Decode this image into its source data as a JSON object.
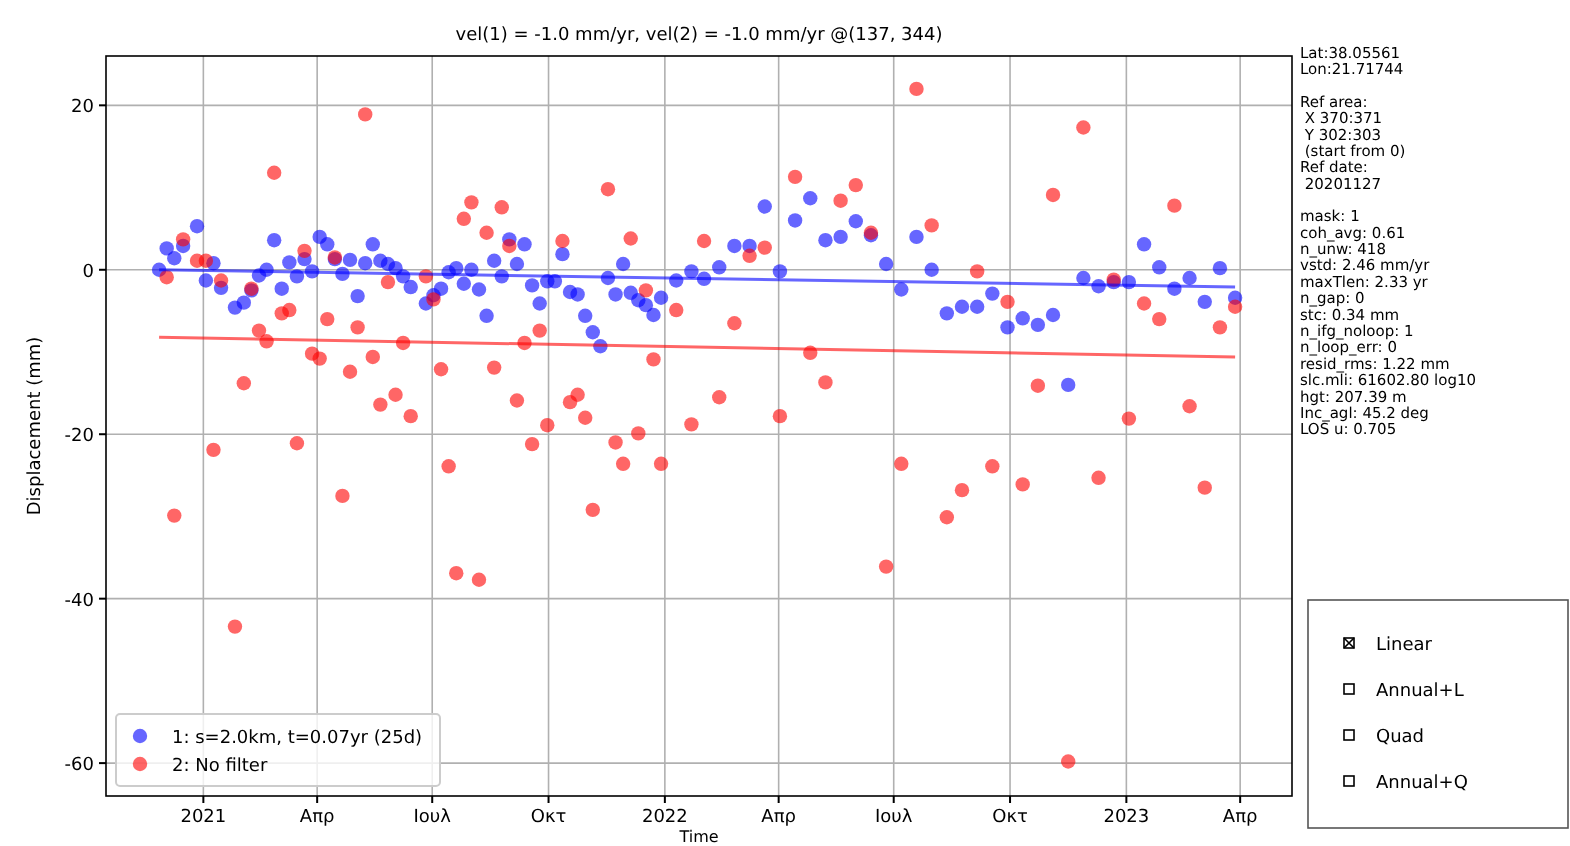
{
  "chart_data": {
    "type": "scatter",
    "title": "vel(1) = -1.0 mm/yr, vel(2) = -1.0 mm/yr @(137, 344)",
    "xlabel": "Time",
    "ylabel": "Displacement (mm)",
    "xlim": [
      "2020-10-16",
      "2023-05-12"
    ],
    "ylim": [
      -64,
      26
    ],
    "yticks": [
      -60,
      -40,
      -20,
      0,
      20
    ],
    "xticks": [
      {
        "value": "2021-01-01",
        "label": "2021"
      },
      {
        "value": "2021-04-01",
        "label": "Απρ"
      },
      {
        "value": "2021-07-01",
        "label": "Ιουλ"
      },
      {
        "value": "2021-10-01",
        "label": "Οκτ"
      },
      {
        "value": "2022-01-01",
        "label": "2022"
      },
      {
        "value": "2022-04-01",
        "label": "Απρ"
      },
      {
        "value": "2022-07-01",
        "label": "Ιουλ"
      },
      {
        "value": "2022-10-01",
        "label": "Οκτ"
      },
      {
        "value": "2023-01-01",
        "label": "2023"
      },
      {
        "value": "2023-04-01",
        "label": "Απρ"
      }
    ],
    "grid": true,
    "legend": "bottom left",
    "marker": "circle",
    "series": [
      {
        "name": "1: s=2.0km, t=0.07yr (25d)",
        "color": "#0000ff",
        "x": [
          "2020-11-27",
          "2020-12-03",
          "2020-12-09",
          "2020-12-16",
          "2020-12-27",
          "2021-01-03",
          "2021-01-09",
          "2021-01-15",
          "2021-01-26",
          "2021-02-02",
          "2021-02-08",
          "2021-02-14",
          "2021-02-20",
          "2021-02-26",
          "2021-03-04",
          "2021-03-10",
          "2021-03-16",
          "2021-03-22",
          "2021-03-28",
          "2021-04-03",
          "2021-04-09",
          "2021-04-15",
          "2021-04-21",
          "2021-04-27",
          "2021-05-03",
          "2021-05-09",
          "2021-05-15",
          "2021-05-21",
          "2021-05-27",
          "2021-06-02",
          "2021-06-08",
          "2021-06-14",
          "2021-06-26",
          "2021-07-02",
          "2021-07-08",
          "2021-07-14",
          "2021-07-20",
          "2021-07-26",
          "2021-08-01",
          "2021-08-07",
          "2021-08-13",
          "2021-08-19",
          "2021-08-25",
          "2021-08-31",
          "2021-09-06",
          "2021-09-12",
          "2021-09-18",
          "2021-09-24",
          "2021-09-30",
          "2021-10-06",
          "2021-10-12",
          "2021-10-18",
          "2021-10-24",
          "2021-10-30",
          "2021-11-05",
          "2021-11-11",
          "2021-11-17",
          "2021-11-23",
          "2021-11-29",
          "2021-12-05",
          "2021-12-11",
          "2021-12-17",
          "2021-12-23",
          "2021-12-29",
          "2022-01-10",
          "2022-01-22",
          "2022-02-01",
          "2022-02-13",
          "2022-02-25",
          "2022-03-09",
          "2022-03-21",
          "2022-04-02",
          "2022-04-14",
          "2022-04-26",
          "2022-05-08",
          "2022-05-20",
          "2022-06-01",
          "2022-06-13",
          "2022-06-25",
          "2022-07-07",
          "2022-07-19",
          "2022-07-31",
          "2022-08-12",
          "2022-08-24",
          "2022-09-05",
          "2022-09-17",
          "2022-09-29",
          "2022-10-11",
          "2022-10-23",
          "2022-11-04",
          "2022-11-16",
          "2022-11-28",
          "2022-12-10",
          "2022-12-22",
          "2023-01-03",
          "2023-01-15",
          "2023-01-27",
          "2023-02-08",
          "2023-02-20",
          "2023-03-04",
          "2023-03-16",
          "2023-03-28"
        ],
        "values": [
          0,
          2.6,
          1.4,
          2.9,
          5.3,
          -1.3,
          0.8,
          -2.2,
          -4.6,
          -4.0,
          -2.5,
          -0.7,
          0,
          3.6,
          -2.3,
          0.9,
          -0.8,
          1.3,
          -0.2,
          4.0,
          3.1,
          1.3,
          -0.5,
          1.2,
          -3.2,
          0.8,
          3.1,
          1.1,
          0.7,
          0.2,
          -0.8,
          -2.1,
          -4.1,
          -3.1,
          -2.3,
          -0.3,
          0.2,
          -1.7,
          0,
          -2.4,
          -5.6,
          1.1,
          -0.8,
          3.7,
          0.7,
          3.1,
          -1.9,
          -4.1,
          -1.4,
          -1.4,
          1.9,
          -2.7,
          -3.0,
          -5.6,
          -7.6,
          -9.3,
          -1.0,
          -3.0,
          0.7,
          -2.8,
          -3.7,
          -4.3,
          -5.5,
          -3.4,
          -1.3,
          -0.2,
          -1.1,
          0.3,
          2.9,
          2.9,
          7.7,
          -0.2,
          6.0,
          8.7,
          3.6,
          4.0,
          5.9,
          4.2,
          0.7,
          -2.4,
          4.0,
          0,
          -5.3,
          -4.5,
          -4.5,
          -2.9,
          -7.0,
          -5.9,
          -6.7,
          -5.5,
          -14.0,
          -1.0,
          -2.0,
          -1.5,
          -1.5,
          3.1,
          0.3,
          -2.3,
          -1.0,
          -3.9,
          0.2,
          -3.4
        ]
      },
      {
        "name": "2: No filter",
        "color": "#ff0000",
        "x": [
          "2020-12-03",
          "2020-12-09",
          "2020-12-16",
          "2020-12-27",
          "2021-01-03",
          "2021-01-09",
          "2021-01-15",
          "2021-01-26",
          "2021-02-02",
          "2021-02-08",
          "2021-02-14",
          "2021-02-20",
          "2021-02-26",
          "2021-03-04",
          "2021-03-10",
          "2021-03-16",
          "2021-03-22",
          "2021-03-28",
          "2021-04-03",
          "2021-04-09",
          "2021-04-15",
          "2021-04-21",
          "2021-04-27",
          "2021-05-03",
          "2021-05-09",
          "2021-05-15",
          "2021-05-21",
          "2021-05-27",
          "2021-06-02",
          "2021-06-08",
          "2021-06-14",
          "2021-06-26",
          "2021-07-02",
          "2021-07-08",
          "2021-07-14",
          "2021-07-20",
          "2021-07-26",
          "2021-08-01",
          "2021-08-07",
          "2021-08-13",
          "2021-08-19",
          "2021-08-25",
          "2021-08-31",
          "2021-09-06",
          "2021-09-12",
          "2021-09-18",
          "2021-09-24",
          "2021-09-30",
          "2021-10-12",
          "2021-10-18",
          "2021-10-24",
          "2021-10-30",
          "2021-11-05",
          "2021-11-17",
          "2021-11-23",
          "2021-11-29",
          "2021-12-05",
          "2021-12-11",
          "2021-12-17",
          "2021-12-23",
          "2021-12-29",
          "2022-01-10",
          "2022-01-22",
          "2022-02-01",
          "2022-02-13",
          "2022-02-25",
          "2022-03-09",
          "2022-03-21",
          "2022-04-02",
          "2022-04-14",
          "2022-04-26",
          "2022-05-08",
          "2022-05-20",
          "2022-06-01",
          "2022-06-13",
          "2022-06-25",
          "2022-07-07",
          "2022-07-19",
          "2022-07-31",
          "2022-08-12",
          "2022-08-24",
          "2022-09-05",
          "2022-09-17",
          "2022-09-29",
          "2022-10-11",
          "2022-10-23",
          "2022-11-04",
          "2022-11-16",
          "2022-11-28",
          "2022-12-10",
          "2022-12-22",
          "2023-01-03",
          "2023-01-15",
          "2023-01-27",
          "2023-02-08",
          "2023-02-20",
          "2023-03-04",
          "2023-03-16",
          "2023-03-28"
        ],
        "values": [
          -0.9,
          -29.9,
          3.7,
          1.1,
          1.1,
          -21.9,
          -1.3,
          -43.4,
          -13.8,
          -2.3,
          -7.4,
          -8.7,
          11.8,
          -5.3,
          -4.9,
          -21.1,
          2.3,
          -10.2,
          -10.8,
          -6.0,
          1.5,
          -27.5,
          -12.4,
          -7.0,
          18.9,
          -10.6,
          -16.4,
          -1.5,
          -15.2,
          -8.9,
          -17.8,
          -0.8,
          -3.6,
          -12.1,
          -23.9,
          -36.9,
          6.2,
          8.2,
          -37.7,
          4.5,
          -11.9,
          7.6,
          2.9,
          -15.9,
          -8.9,
          -21.2,
          -7.4,
          -18.9,
          3.5,
          -16.1,
          -15.2,
          -18.0,
          -29.2,
          9.8,
          -21.0,
          -23.6,
          3.8,
          -19.9,
          -2.5,
          -10.9,
          -23.6,
          -4.9,
          -18.8,
          3.5,
          -15.5,
          -6.5,
          1.7,
          2.7,
          -17.8,
          11.3,
          -10.1,
          -13.7,
          8.4,
          10.3,
          4.5,
          -36.1,
          -23.6,
          22.0,
          5.4,
          -30.1,
          -26.8,
          -0.2,
          -23.9,
          -3.9,
          -26.1,
          -14.1,
          9.1,
          -59.8,
          17.3,
          -25.3,
          -1.2,
          -18.1,
          -4.1,
          -6.0,
          7.8,
          -16.6,
          -26.5,
          -7.0,
          -4.5
        ]
      },
      {
        "type": "line",
        "marker": "none",
        "color": "#0000ff",
        "x": [
          "2020-11-27",
          "2023-03-28"
        ],
        "values": [
          0,
          -2.1
        ]
      },
      {
        "type": "line",
        "marker": "none",
        "color": "#ff0000",
        "x": [
          "2020-11-27",
          "2023-03-28"
        ],
        "values": [
          -8.2,
          -10.6
        ]
      }
    ],
    "annotations": [
      "Lat:38.05561",
      "Lon:21.71744",
      "Ref area:",
      " X 370:371",
      " Y 302:303",
      " (start from 0)",
      "Ref date:",
      " 20201127",
      "mask: 1",
      "coh_avg: 0.61",
      "n_unw: 418",
      "vstd: 2.46 mm/yr",
      "maxTlen: 2.33 yr",
      "n_gap: 0",
      "stc: 0.34 mm",
      "n_ifg_noloop: 1",
      "n_loop_err: 0",
      "resid_rms: 1.22 mm",
      "slc.mli: 61602.80 log10",
      "hgt: 207.39 m",
      "Inc_agl: 45.2 deg",
      "LOS u: 0.705",
      "Linear",
      "Annual+L",
      "Quad",
      "Annual+Q"
    ]
  }
}
